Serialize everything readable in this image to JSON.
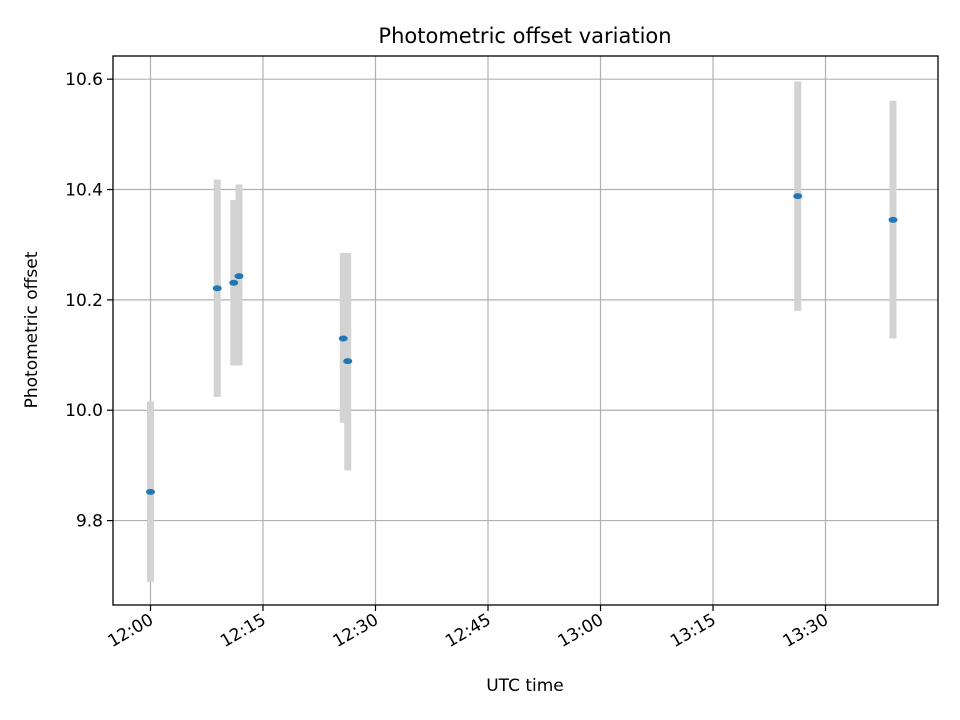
{
  "chart_data": {
    "type": "scatter",
    "title": "Photometric offset variation",
    "xlabel": "UTC time",
    "ylabel": "Photometric offset",
    "xlim": [
      "11:55",
      "13:45"
    ],
    "ylim": [
      9.647,
      10.642
    ],
    "x_ticks": [
      "12:00",
      "12:15",
      "12:30",
      "12:45",
      "13:00",
      "13:15",
      "13:30"
    ],
    "y_ticks": [
      "9.8",
      "10.0",
      "10.2",
      "10.4",
      "10.6"
    ],
    "grid": true,
    "colors": {
      "points": "#1f77b4",
      "error_bars": "#d3d3d3",
      "grid": "#b0b0b0"
    },
    "points": [
      {
        "time": "12:00:00",
        "y": 9.852,
        "ymin": 9.689,
        "ymax": 10.016
      },
      {
        "time": "12:08:54",
        "y": 10.221,
        "ymin": 10.024,
        "ymax": 10.418
      },
      {
        "time": "12:11:06",
        "y": 10.231,
        "ymin": 10.081,
        "ymax": 10.381
      },
      {
        "time": "12:11:48",
        "y": 10.243,
        "ymin": 10.081,
        "ymax": 10.409
      },
      {
        "time": "12:25:42",
        "y": 10.13,
        "ymin": 9.977,
        "ymax": 10.285
      },
      {
        "time": "12:26:18",
        "y": 10.089,
        "ymin": 9.891,
        "ymax": 10.285
      },
      {
        "time": "13:26:18",
        "y": 10.388,
        "ymin": 10.18,
        "ymax": 10.596
      },
      {
        "time": "13:39:00",
        "y": 10.345,
        "ymin": 10.13,
        "ymax": 10.561
      }
    ]
  }
}
